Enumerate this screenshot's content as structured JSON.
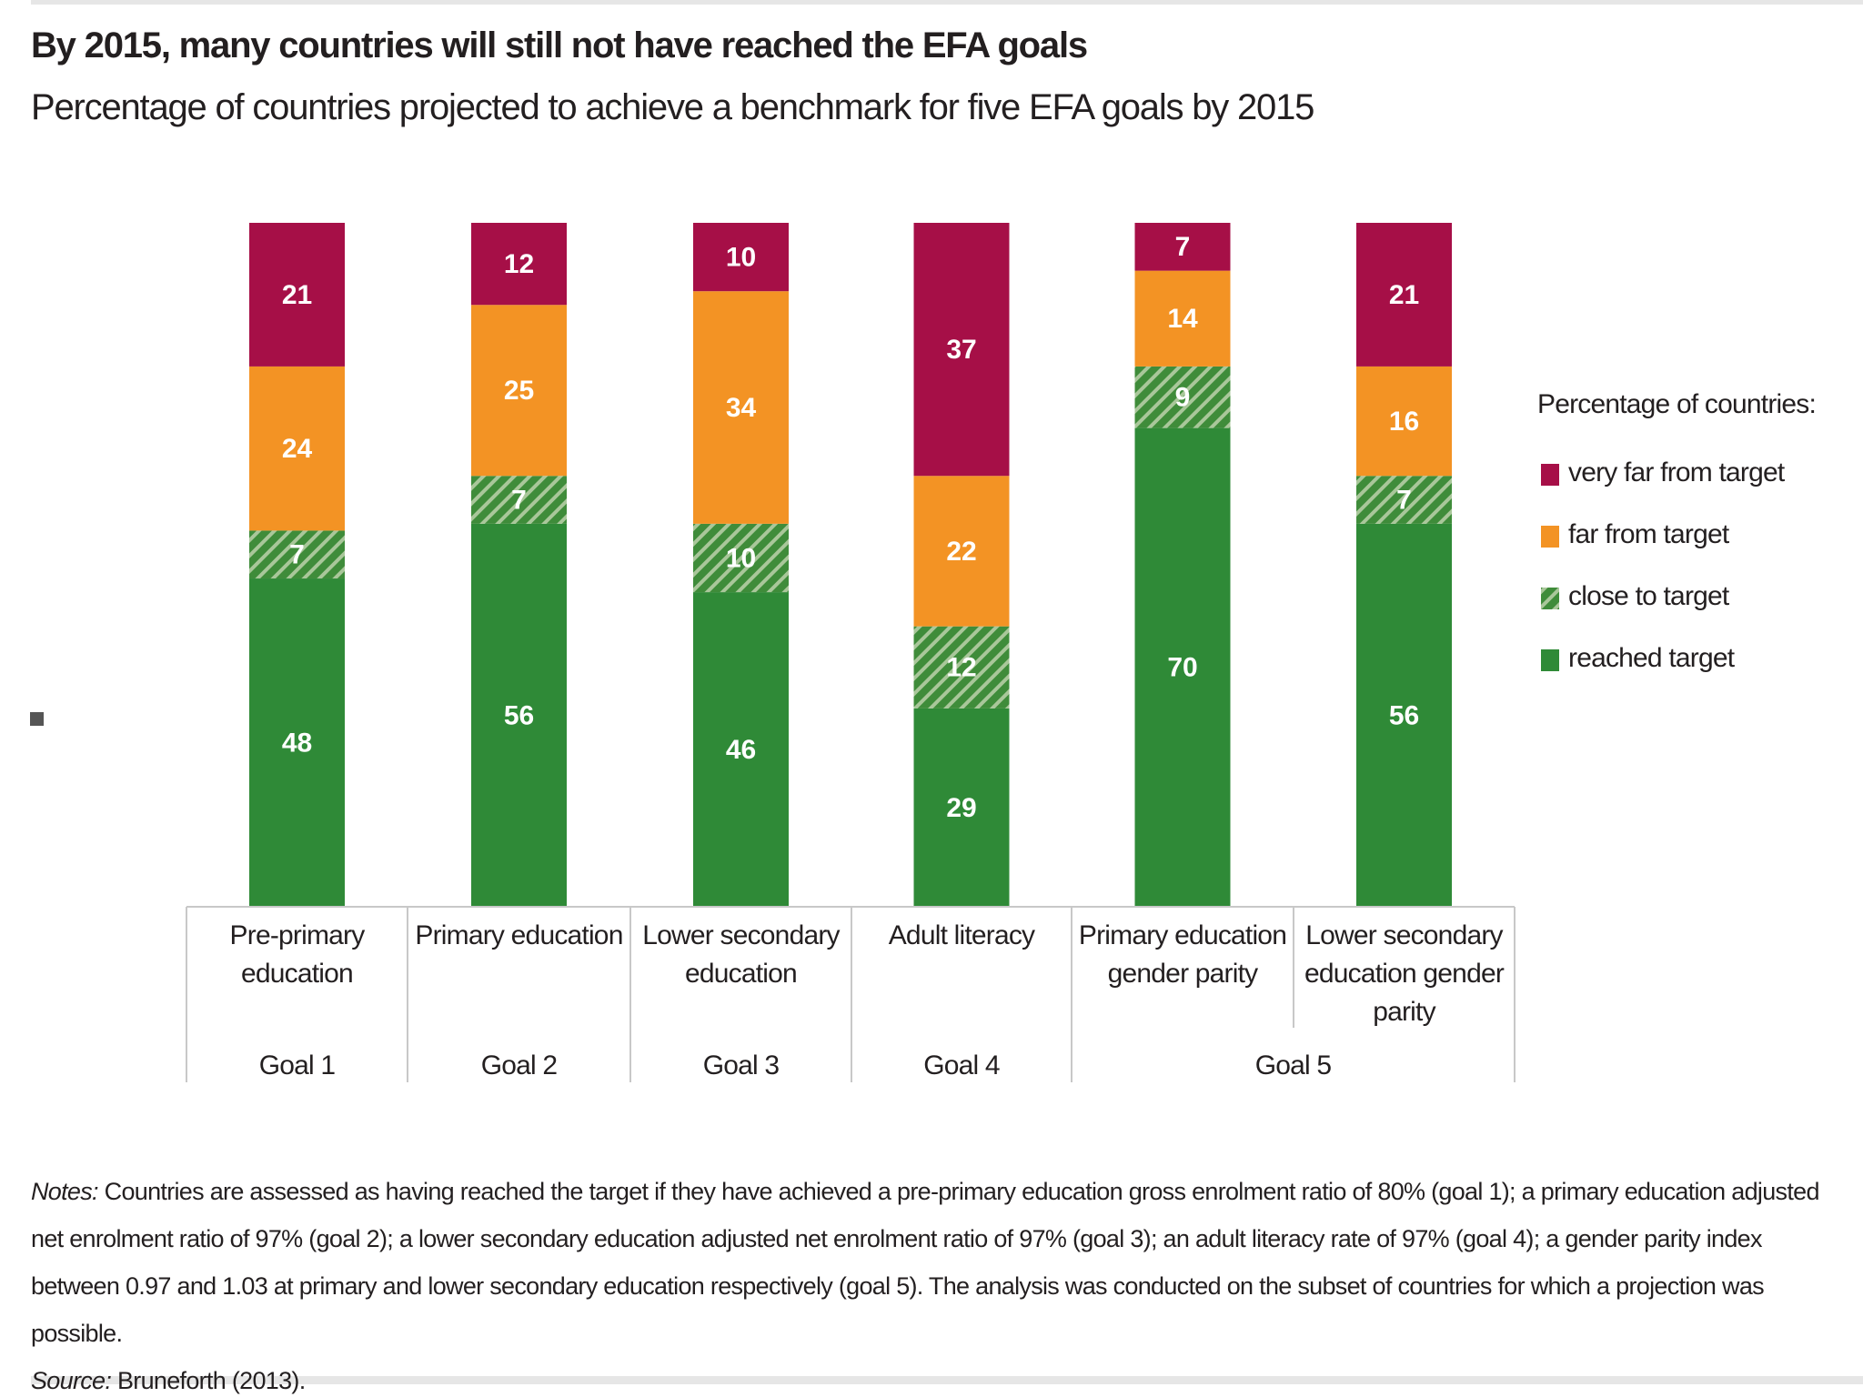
{
  "chart_data": {
    "type": "stacked-bar",
    "title": "By 2015, many countries will still not have reached the EFA goals",
    "subtitle": "Percentage of countries projected to achieve a benchmark for five EFA goals by 2015",
    "categories": [
      "Pre-primary education",
      "Primary education",
      "Lower secondary education",
      "Adult literacy",
      "Primary education gender parity",
      "Lower secondary education gender parity"
    ],
    "groups": [
      "Goal 1",
      "Goal 2",
      "Goal 3",
      "Goal 4",
      "Goal 5",
      null
    ],
    "ylim": [
      0,
      100
    ],
    "legend_title": "Percentage of countries:",
    "legend": "right",
    "series": [
      {
        "name": "reached target",
        "color": "#2f8a37",
        "values": [
          48,
          56,
          46,
          29,
          70,
          56
        ]
      },
      {
        "name": "close to target",
        "color": "#3f8c3a",
        "pattern": "hatch",
        "values": [
          7,
          7,
          10,
          12,
          9,
          7
        ]
      },
      {
        "name": "far from target",
        "color": "#f39324",
        "values": [
          24,
          25,
          34,
          22,
          14,
          16
        ]
      },
      {
        "name": "very far from target",
        "color": "#a60f47",
        "values": [
          21,
          12,
          10,
          37,
          7,
          21
        ]
      }
    ],
    "notes": {
      "label": "Notes:",
      "text": "Countries are assessed as having reached the target if they have achieved a pre-primary education gross enrolment ratio of 80% (goal 1); a primary education adjusted net enrolment ratio of 97% (goal 2); a lower secondary education adjusted net enrolment ratio of 97% (goal 3); an adult literacy rate of 97% (goal 4); a gender parity index between 0.97 and 1.03 at primary and lower secondary education respectively (goal 5). The analysis was conducted on the subset of countries for which a projection was possible."
    },
    "source": {
      "label": "Source:",
      "text": "Bruneforth (2013)."
    }
  }
}
